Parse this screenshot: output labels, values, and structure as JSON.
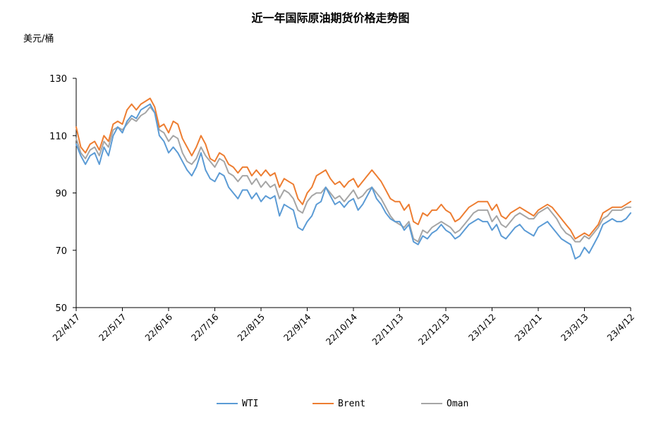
{
  "chart_data": {
    "type": "line",
    "title": "近一年国际原油期货价格走势图",
    "ylabel": "美元/桶",
    "xlabel": "",
    "ylim": [
      50,
      130
    ],
    "yticks": [
      50,
      70,
      90,
      110,
      130
    ],
    "x_tick_labels": [
      "22/4/17",
      "22/5/17",
      "22/6/16",
      "22/7/16",
      "22/8/15",
      "22/9/14",
      "22/10/14",
      "22/11/13",
      "22/12/13",
      "23/1/12",
      "23/2/11",
      "23/3/13",
      "23/4/12"
    ],
    "grid": false,
    "legend_position": "bottom",
    "series": [
      {
        "name": "WTI",
        "color": "#5b9bd5",
        "values": [
          107,
          103,
          100,
          103,
          104,
          100,
          106,
          103,
          110,
          113,
          111,
          115,
          117,
          116,
          119,
          120,
          121,
          118,
          110,
          108,
          104,
          106,
          104,
          101,
          98,
          96,
          99,
          104,
          98,
          95,
          94,
          97,
          96,
          92,
          90,
          88,
          91,
          91,
          88,
          90,
          87,
          89,
          88,
          89,
          82,
          86,
          85,
          84,
          78,
          77,
          80,
          82,
          86,
          87,
          92,
          89,
          86,
          87,
          85,
          87,
          88,
          84,
          86,
          89,
          92,
          88,
          86,
          83,
          81,
          80,
          80,
          77,
          79,
          73,
          72,
          75,
          74,
          76,
          77,
          79,
          77,
          76,
          74,
          75,
          77,
          79,
          80,
          81,
          80,
          80,
          77,
          79,
          75,
          74,
          76,
          78,
          79,
          77,
          76,
          75,
          78,
          79,
          80,
          78,
          76,
          74,
          73,
          72,
          67,
          68,
          71,
          69,
          72,
          75,
          79,
          80,
          81,
          80,
          80,
          81,
          83
        ]
      },
      {
        "name": "Brent",
        "color": "#ed7d31",
        "values": [
          113,
          106,
          104,
          107,
          108,
          105,
          110,
          108,
          114,
          115,
          114,
          119,
          121,
          119,
          121,
          122,
          123,
          120,
          113,
          114,
          111,
          115,
          114,
          109,
          106,
          103,
          106,
          110,
          107,
          102,
          101,
          104,
          103,
          100,
          99,
          97,
          99,
          99,
          96,
          98,
          96,
          98,
          96,
          97,
          92,
          95,
          94,
          93,
          88,
          86,
          90,
          92,
          96,
          97,
          98,
          95,
          93,
          94,
          92,
          94,
          95,
          92,
          94,
          96,
          98,
          96,
          94,
          91,
          88,
          87,
          87,
          84,
          86,
          80,
          79,
          83,
          82,
          84,
          84,
          86,
          84,
          83,
          80,
          81,
          83,
          85,
          86,
          87,
          87,
          87,
          84,
          86,
          82,
          81,
          83,
          84,
          85,
          84,
          83,
          82,
          84,
          85,
          86,
          85,
          83,
          81,
          79,
          77,
          74,
          75,
          76,
          75,
          77,
          79,
          83,
          84,
          85,
          85,
          85,
          86,
          87
        ]
      },
      {
        "name": "Oman",
        "color": "#a5a5a5",
        "values": [
          109,
          104,
          102,
          105,
          106,
          103,
          108,
          106,
          112,
          113,
          112,
          114,
          116,
          115,
          117,
          118,
          120,
          118,
          112,
          111,
          108,
          110,
          109,
          104,
          101,
          100,
          102,
          106,
          103,
          101,
          99,
          102,
          101,
          97,
          96,
          94,
          96,
          96,
          93,
          95,
          92,
          94,
          92,
          93,
          88,
          91,
          90,
          88,
          84,
          83,
          87,
          89,
          90,
          90,
          92,
          90,
          88,
          89,
          87,
          89,
          91,
          88,
          89,
          91,
          92,
          90,
          88,
          85,
          82,
          80,
          79,
          78,
          80,
          74,
          73,
          77,
          76,
          78,
          79,
          80,
          79,
          78,
          76,
          77,
          79,
          81,
          83,
          84,
          84,
          84,
          80,
          82,
          79,
          78,
          80,
          82,
          83,
          82,
          81,
          81,
          83,
          84,
          85,
          83,
          81,
          78,
          76,
          75,
          73,
          73,
          75,
          74,
          76,
          78,
          81,
          82,
          84,
          84,
          84,
          85,
          85
        ]
      }
    ]
  }
}
